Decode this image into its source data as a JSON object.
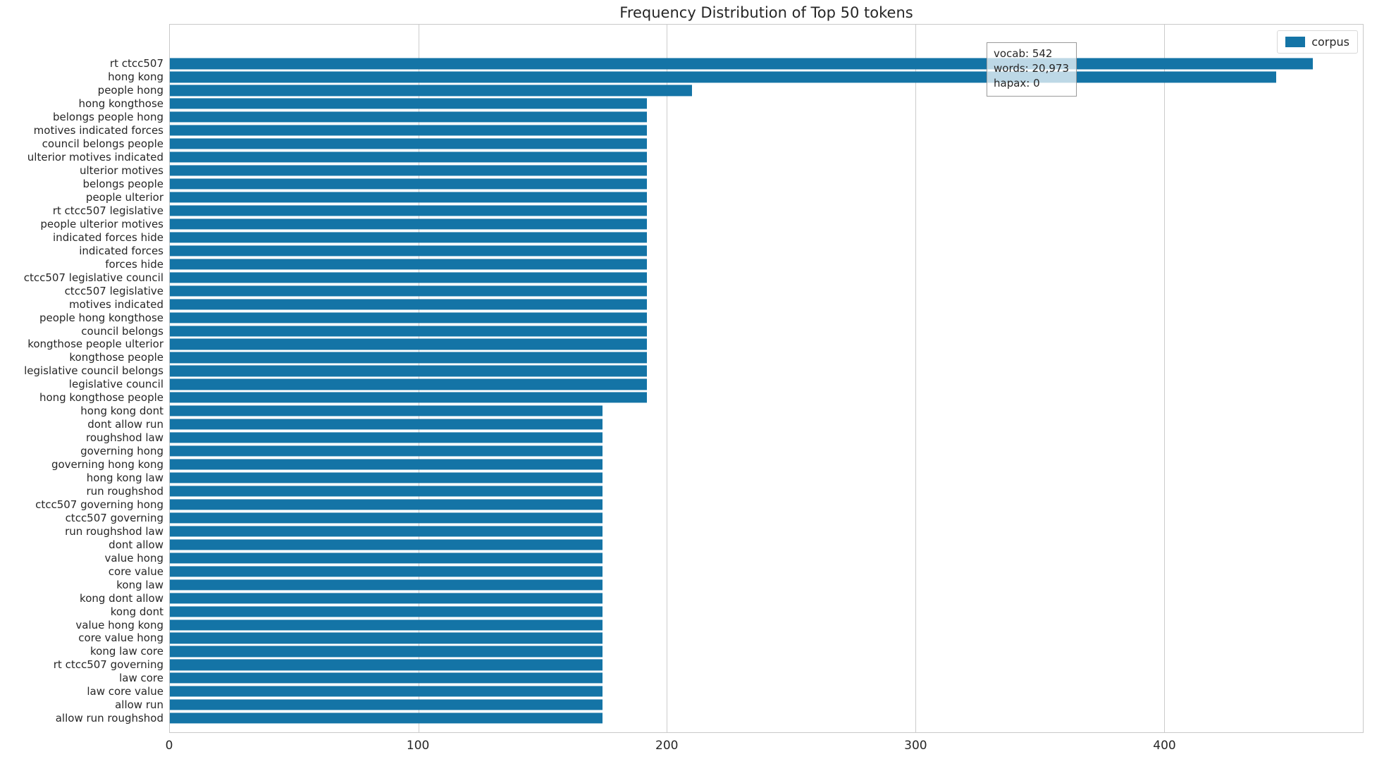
{
  "title": "Frequency Distribution of Top 50 tokens",
  "legend": {
    "label": "corpus"
  },
  "annotation": {
    "lines": [
      "vocab: 542",
      "words: 20,973",
      "hapax: 0"
    ]
  },
  "colors": {
    "bar": "#1474a6",
    "grid": "#cccccc",
    "spine": "#c9c9c9",
    "text": "#262626"
  },
  "chart_data": {
    "type": "bar",
    "orientation": "horizontal",
    "title": "Frequency Distribution of Top 50 tokens",
    "xlabel": "",
    "ylabel": "",
    "xlim": [
      0,
      480
    ],
    "xticks": [
      0,
      100,
      200,
      300,
      400
    ],
    "grid": true,
    "legend_position": "upper right",
    "legend_entries": [
      "corpus"
    ],
    "annotation_text": [
      "vocab: 542",
      "words: 20,973",
      "hapax: 0"
    ],
    "categories": [
      "rt ctcc507",
      "hong kong",
      "people hong",
      "hong kongthose",
      "belongs people hong",
      "motives indicated forces",
      "council belongs people",
      "ulterior motives indicated",
      "ulterior motives",
      "belongs people",
      "people ulterior",
      "rt ctcc507 legislative",
      "people ulterior motives",
      "indicated forces hide",
      "indicated forces",
      "forces hide",
      "ctcc507 legislative council",
      "ctcc507 legislative",
      "motives indicated",
      "people hong kongthose",
      "council belongs",
      "kongthose people ulterior",
      "kongthose people",
      "legislative council belongs",
      "legislative council",
      "hong kongthose people",
      "hong kong dont",
      "dont allow run",
      "roughshod law",
      "governing hong",
      "governing hong kong",
      "hong kong law",
      "run roughshod",
      "ctcc507 governing hong",
      "ctcc507 governing",
      "run roughshod law",
      "dont allow",
      "value hong",
      "core value",
      "kong law",
      "kong dont allow",
      "kong dont",
      "value hong kong",
      "core value hong",
      "kong law core",
      "rt ctcc507 governing",
      "law core",
      "law core value",
      "allow run",
      "allow run roughshod"
    ],
    "values": [
      460,
      445,
      210,
      192,
      192,
      192,
      192,
      192,
      192,
      192,
      192,
      192,
      192,
      192,
      192,
      192,
      192,
      192,
      192,
      192,
      192,
      192,
      192,
      192,
      192,
      192,
      174,
      174,
      174,
      174,
      174,
      174,
      174,
      174,
      174,
      174,
      174,
      174,
      174,
      174,
      174,
      174,
      174,
      174,
      174,
      174,
      174,
      174,
      174,
      174
    ]
  }
}
